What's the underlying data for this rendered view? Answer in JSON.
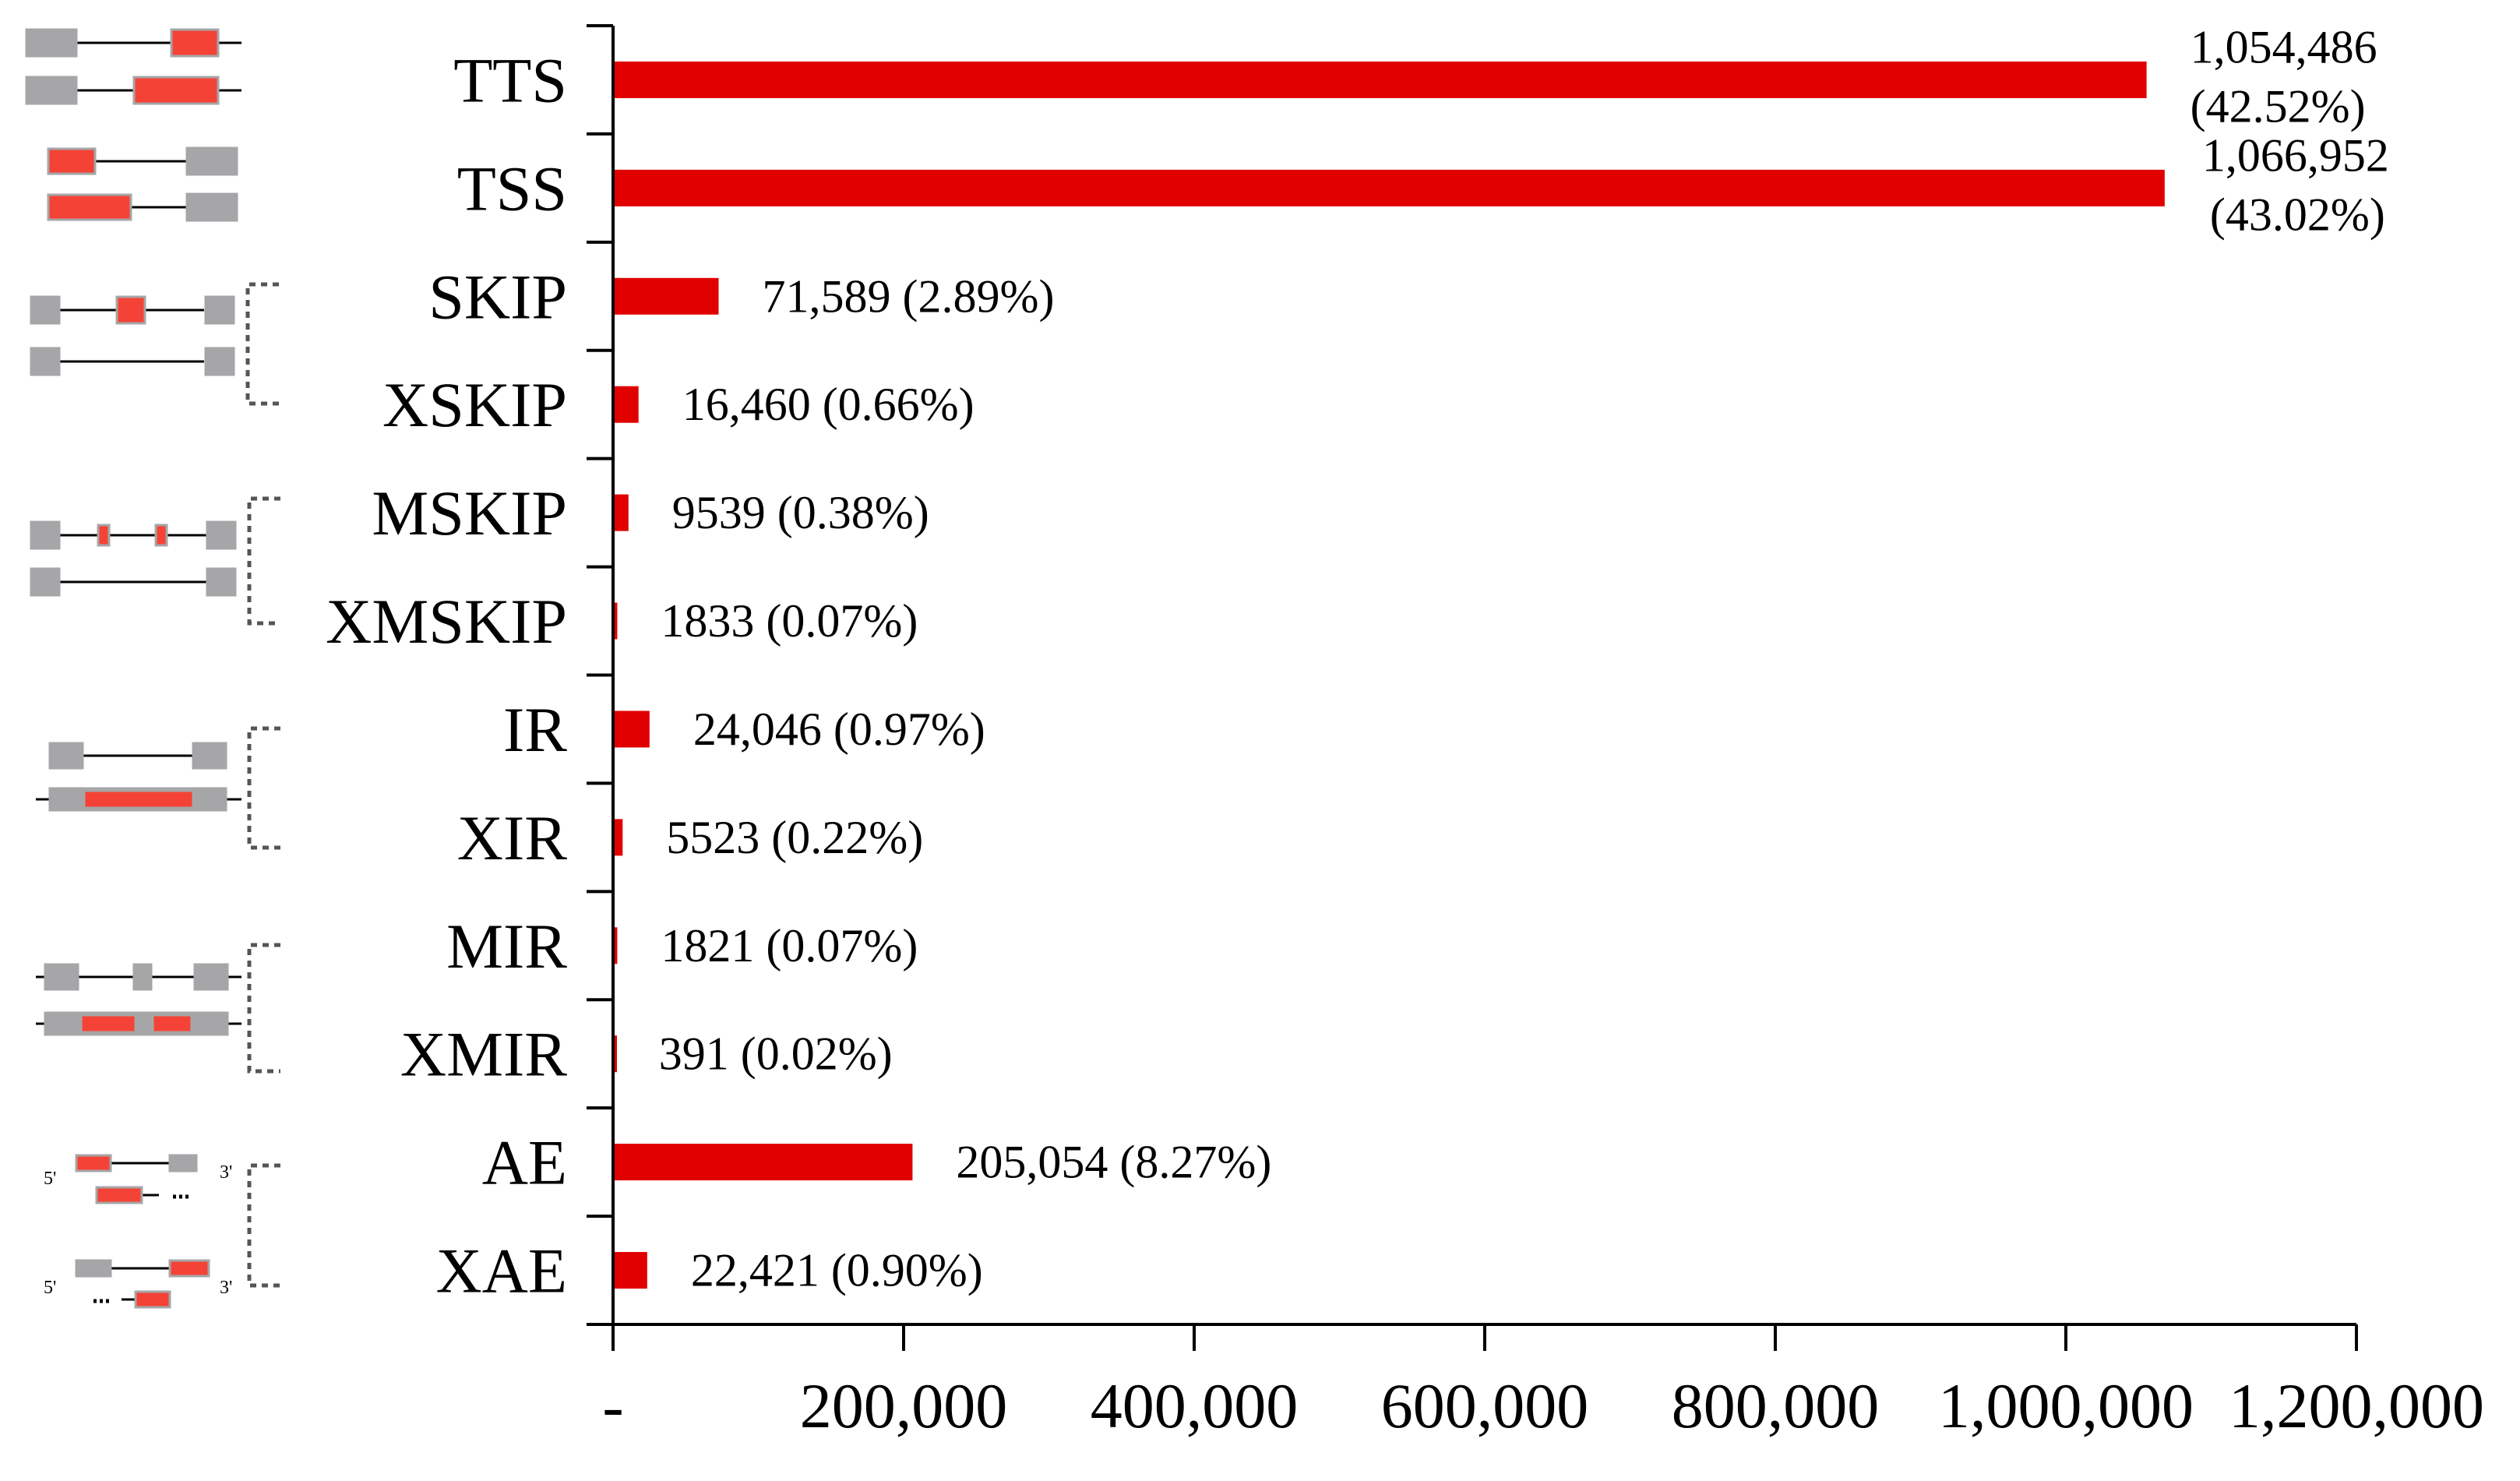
{
  "chart_data": {
    "type": "bar",
    "orientation": "horizontal",
    "categories": [
      "TTS",
      "TSS",
      "SKIP",
      "XSKIP",
      "MSKIP",
      "XMSKIP",
      "IR",
      "XIR",
      "MIR",
      "XMIR",
      "AE",
      "XAE"
    ],
    "values": [
      1054486,
      1066952,
      71589,
      16460,
      9539,
      1833,
      24046,
      5523,
      1821,
      391,
      205054,
      22421
    ],
    "data_labels": [
      [
        "1,054,486",
        "(42.52%)"
      ],
      [
        "1,066,952",
        "(43.02%)"
      ],
      [
        "71,589 (2.89%)"
      ],
      [
        "16,460 (0.66%)"
      ],
      [
        "9539 (0.38%)"
      ],
      [
        "1833 (0.07%)"
      ],
      [
        "24,046 (0.97%)"
      ],
      [
        "5523 (0.22%)"
      ],
      [
        "1821 (0.07%)"
      ],
      [
        "391 (0.02%)"
      ],
      [
        "205,054 (8.27%)"
      ],
      [
        "22,421 (0.90%)"
      ]
    ],
    "xlim": [
      0,
      1200000
    ],
    "x_ticks": [
      0,
      200000,
      400000,
      600000,
      800000,
      1000000,
      1200000
    ],
    "x_tick_labels": [
      "-",
      "200,000",
      "400,000",
      "600,000",
      "800,000",
      "1,000,000",
      "1,200,000"
    ],
    "bar_color": "#e00000",
    "grid": false,
    "legend": "none",
    "title": "",
    "xlabel": "",
    "ylabel": ""
  },
  "schematic": {
    "exon_color": "#a6a6a8",
    "highlight_color": "#f44336",
    "line_color": "#000000",
    "bracket_color": "#555555",
    "strand_labels": {
      "five_prime": "5'",
      "three_prime": "3'"
    }
  }
}
